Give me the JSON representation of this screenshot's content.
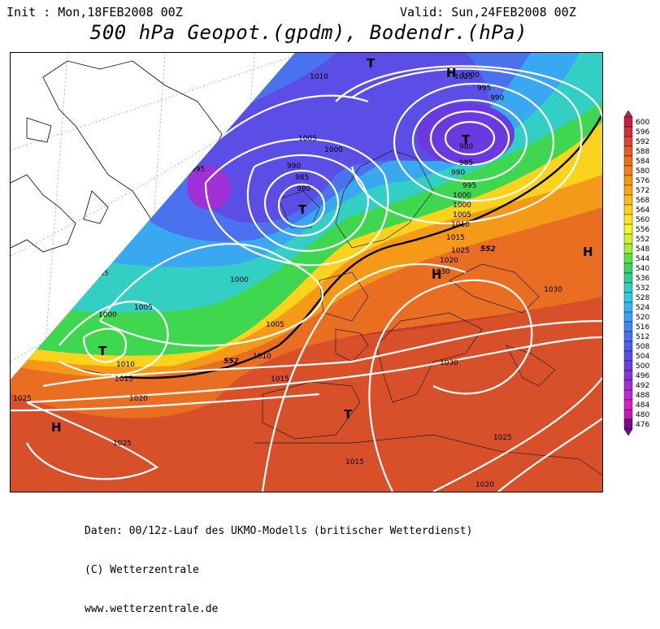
{
  "header": {
    "init": "Init : Mon,18FEB2008 00Z",
    "valid": "Valid: Sun,24FEB2008 00Z",
    "title": "500 hPa Geopot.(gpdm), Bodendr.(hPa)"
  },
  "footer": {
    "line1": "Daten: 00/12z-Lauf des UKMO-Modells (britischer Wetterdienst)",
    "line2": "(C) Wetterzentrale",
    "line3": "www.wetterzentrale.de"
  },
  "legend": {
    "levels": [
      "600",
      "596",
      "592",
      "588",
      "584",
      "580",
      "576",
      "572",
      "568",
      "564",
      "560",
      "556",
      "552",
      "548",
      "544",
      "540",
      "536",
      "532",
      "528",
      "524",
      "520",
      "516",
      "512",
      "508",
      "504",
      "500",
      "496",
      "492",
      "488",
      "484",
      "480",
      "476"
    ],
    "colors": [
      "#c81e4a",
      "#d2303a",
      "#dc4530",
      "#e65a28",
      "#ee6e20",
      "#f2821a",
      "#f69616",
      "#f7aa16",
      "#f9be18",
      "#fbd21c",
      "#fde624",
      "#f4f42a",
      "#d6f030",
      "#9ef03a",
      "#5ee640",
      "#3ad860",
      "#30d096",
      "#30cfc4",
      "#34c8e6",
      "#38b4f2",
      "#3c9ef4",
      "#4088f2",
      "#4a72ee",
      "#5060ea",
      "#5a4ee6",
      "#6a40e2",
      "#8436dc",
      "#a030d6",
      "#bc2ad0",
      "#d424c8",
      "#c018b0",
      "#7a0a8a"
    ]
  },
  "map": {
    "pressure_labels": [
      "1010",
      "1005",
      "1000",
      "995",
      "990",
      "985",
      "980",
      "1000",
      "995",
      "990",
      "985",
      "980",
      "1000",
      "995",
      "990",
      "1000",
      "1005",
      "1010",
      "1015",
      "1020",
      "1025",
      "1000",
      "1005",
      "1005",
      "1000",
      "1010",
      "1015",
      "1020",
      "1025",
      "1030",
      "1030",
      "1030",
      "1025",
      "1020",
      "1015",
      "1015",
      "1010",
      "1005",
      "1025",
      "1025"
    ],
    "systems": [
      "T",
      "T",
      "T",
      "T",
      "H",
      "H",
      "H",
      "H",
      "T"
    ],
    "line_label": "552"
  }
}
